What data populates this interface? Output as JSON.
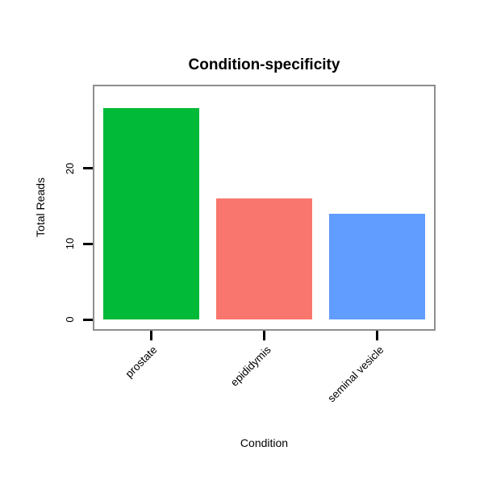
{
  "chart_data": {
    "type": "bar",
    "title": "Condition-specificity",
    "xlabel": "Condition",
    "ylabel": "Total Reads",
    "categories": [
      "prostate",
      "epididymis",
      "seminal vesicle"
    ],
    "values": [
      28,
      16,
      14
    ],
    "bar_colors": [
      "#00BA38",
      "#F8766D",
      "#619CFF"
    ],
    "ylim": [
      0,
      30
    ],
    "yticks": [
      0,
      10,
      20
    ],
    "grid": false,
    "legend": "none",
    "panel_border_color": "#8e8e8e",
    "axis_color": "#000000",
    "background_color": "#ffffff"
  }
}
